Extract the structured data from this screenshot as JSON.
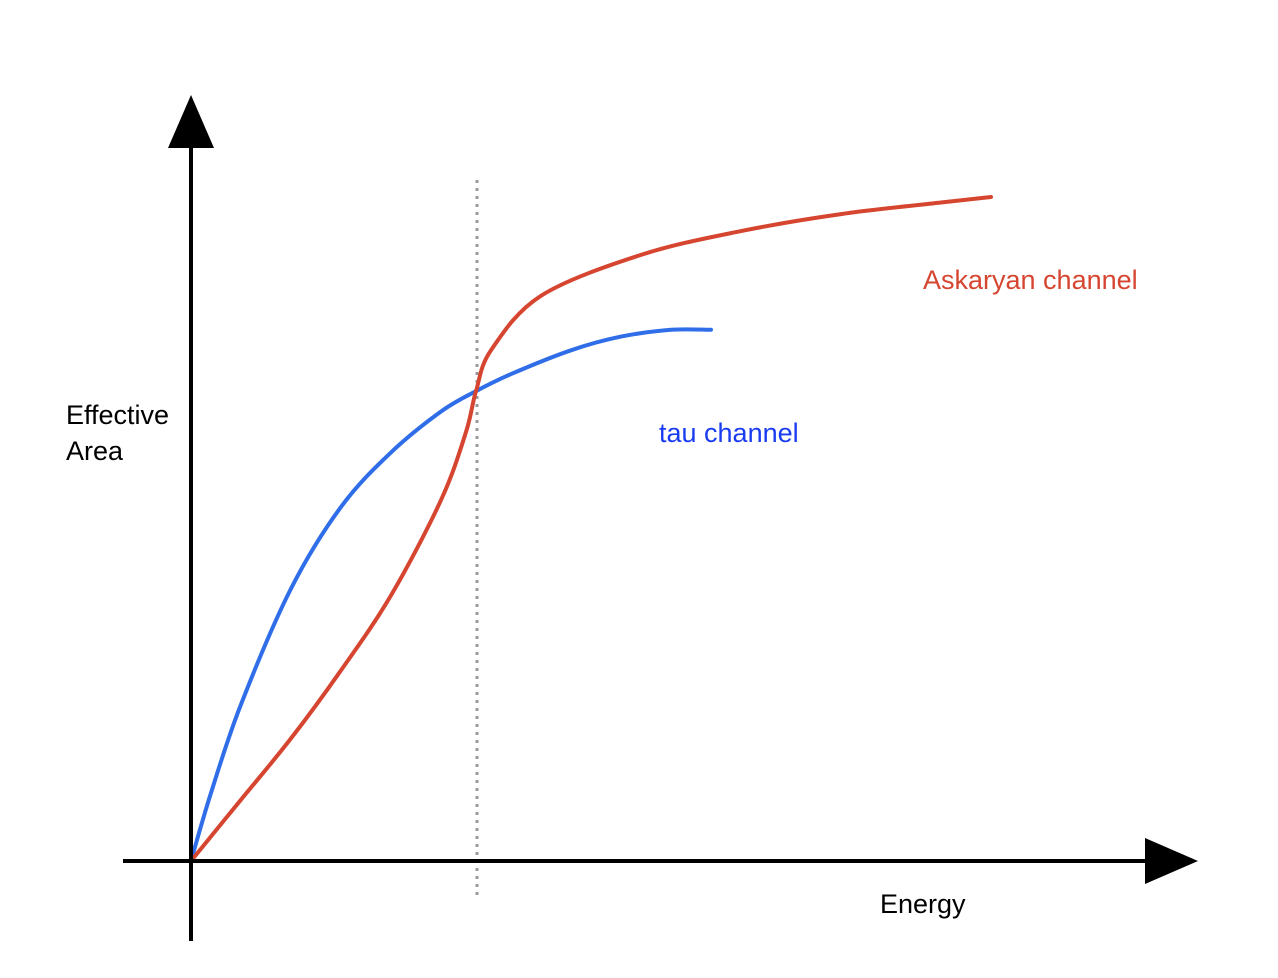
{
  "chart_data": {
    "type": "line",
    "xlabel": "Energy",
    "ylabel_lines": [
      "Effective",
      "Area"
    ],
    "xlim": [
      0,
      1
    ],
    "ylim": [
      0,
      1
    ],
    "grid": false,
    "crossover_x": 0.285,
    "colors": {
      "axis": "#000000",
      "divider": "#9a9a9a"
    },
    "series": [
      {
        "name": "tau channel",
        "color": "#2f6ee8",
        "label_color": "#1a3cf0",
        "x": [
          0.0,
          0.02,
          0.05,
          0.1,
          0.15,
          0.2,
          0.25,
          0.285,
          0.32,
          0.38,
          0.43,
          0.48,
          0.52
        ],
        "y": [
          0.0,
          0.1,
          0.23,
          0.4,
          0.52,
          0.6,
          0.66,
          0.69,
          0.715,
          0.75,
          0.77,
          0.78,
          0.78
        ]
      },
      {
        "name": "Askaryan channel",
        "color": "#d64530",
        "label_color": "#d64530",
        "x": [
          0.0,
          0.05,
          0.1,
          0.15,
          0.2,
          0.25,
          0.275,
          0.285,
          0.3,
          0.35,
          0.45,
          0.55,
          0.65,
          0.75,
          0.8
        ],
        "y": [
          0.0,
          0.09,
          0.18,
          0.28,
          0.39,
          0.53,
          0.63,
          0.69,
          0.75,
          0.83,
          0.89,
          0.925,
          0.95,
          0.967,
          0.975
        ]
      }
    ]
  }
}
